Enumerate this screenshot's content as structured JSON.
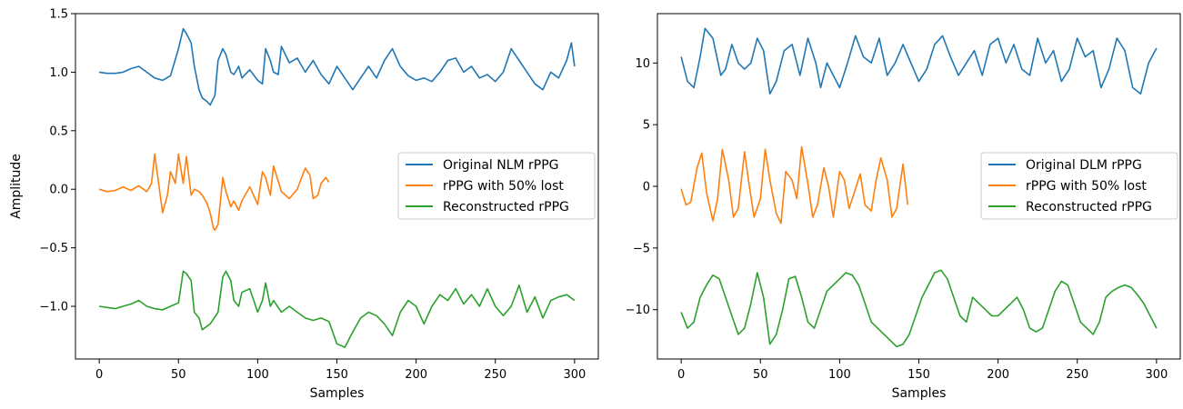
{
  "chart_data": [
    {
      "type": "line",
      "title": "",
      "xlabel": "Samples",
      "ylabel": "Amplitude",
      "xlim": [
        -15,
        315
      ],
      "ylim": [
        -1.45,
        1.5
      ],
      "xticks": [
        0,
        50,
        100,
        150,
        200,
        250,
        300
      ],
      "yticks": [
        -1.0,
        -0.5,
        0.0,
        0.5,
        1.0,
        1.5
      ],
      "ytick_labels": [
        "−1.0",
        "−0.5",
        "0.0",
        "0.5",
        "1.0",
        "1.5"
      ],
      "grid": false,
      "legend_position": "center-right",
      "series": [
        {
          "name": "Original NLM rPPG",
          "color": "#1f77b4",
          "x": [
            0,
            5,
            10,
            15,
            20,
            25,
            30,
            35,
            40,
            45,
            50,
            53,
            55,
            58,
            60,
            63,
            65,
            68,
            70,
            73,
            75,
            78,
            80,
            83,
            85,
            88,
            90,
            95,
            100,
            103,
            105,
            108,
            110,
            113,
            115,
            120,
            125,
            130,
            135,
            140,
            145,
            150,
            155,
            160,
            165,
            170,
            175,
            180,
            185,
            190,
            195,
            200,
            205,
            210,
            215,
            220,
            225,
            230,
            235,
            240,
            245,
            250,
            255,
            260,
            265,
            270,
            275,
            280,
            285,
            290,
            295,
            298,
            300
          ],
          "y": [
            1.0,
            0.99,
            0.99,
            1.0,
            1.03,
            1.05,
            1.0,
            0.95,
            0.93,
            0.97,
            1.2,
            1.37,
            1.33,
            1.25,
            1.05,
            0.85,
            0.78,
            0.75,
            0.72,
            0.8,
            1.1,
            1.2,
            1.15,
            1.0,
            0.98,
            1.05,
            0.95,
            1.02,
            0.93,
            0.9,
            1.2,
            1.1,
            1.0,
            0.98,
            1.22,
            1.08,
            1.12,
            1.0,
            1.1,
            0.98,
            0.9,
            1.05,
            0.95,
            0.85,
            0.95,
            1.05,
            0.95,
            1.1,
            1.2,
            1.05,
            0.97,
            0.93,
            0.95,
            0.92,
            1.0,
            1.1,
            1.12,
            1.0,
            1.05,
            0.95,
            0.98,
            0.92,
            1.0,
            1.2,
            1.1,
            1.0,
            0.9,
            0.85,
            1.0,
            0.95,
            1.1,
            1.25,
            1.05
          ]
        },
        {
          "name": "rPPG with 50% lost",
          "color": "#ff7f0e",
          "x": [
            0,
            5,
            10,
            15,
            20,
            25,
            30,
            33,
            35,
            38,
            40,
            43,
            45,
            48,
            50,
            53,
            55,
            58,
            60,
            63,
            65,
            68,
            70,
            72,
            73,
            75,
            78,
            80,
            83,
            85,
            88,
            90,
            95,
            100,
            103,
            105,
            108,
            110,
            115,
            120,
            125,
            130,
            133,
            135,
            138,
            140,
            143,
            145
          ],
          "y": [
            0.0,
            -0.02,
            -0.01,
            0.02,
            -0.01,
            0.03,
            -0.02,
            0.05,
            0.3,
            0.0,
            -0.2,
            -0.05,
            0.15,
            0.05,
            0.3,
            0.05,
            0.28,
            -0.05,
            0.0,
            -0.02,
            -0.05,
            -0.12,
            -0.2,
            -0.33,
            -0.35,
            -0.3,
            0.1,
            -0.02,
            -0.15,
            -0.1,
            -0.18,
            -0.1,
            0.02,
            -0.13,
            0.15,
            0.1,
            -0.05,
            0.2,
            -0.02,
            -0.08,
            0.0,
            0.18,
            0.12,
            -0.08,
            -0.05,
            0.05,
            0.1,
            0.06
          ]
        },
        {
          "name": "Reconstructed rPPG",
          "color": "#2ca02c",
          "x": [
            0,
            5,
            10,
            15,
            20,
            25,
            30,
            35,
            40,
            45,
            50,
            53,
            55,
            58,
            60,
            63,
            65,
            70,
            75,
            78,
            80,
            83,
            85,
            88,
            90,
            95,
            100,
            103,
            105,
            108,
            110,
            115,
            120,
            125,
            130,
            135,
            140,
            145,
            150,
            155,
            160,
            165,
            170,
            175,
            180,
            185,
            190,
            195,
            200,
            205,
            210,
            215,
            220,
            225,
            230,
            235,
            240,
            245,
            250,
            255,
            260,
            265,
            270,
            275,
            280,
            285,
            290,
            295,
            300
          ],
          "y": [
            -1.0,
            -1.01,
            -1.02,
            -1.0,
            -0.98,
            -0.95,
            -1.0,
            -1.02,
            -1.03,
            -1.0,
            -0.97,
            -0.7,
            -0.72,
            -0.78,
            -1.05,
            -1.1,
            -1.2,
            -1.15,
            -1.05,
            -0.75,
            -0.7,
            -0.78,
            -0.95,
            -1.0,
            -0.88,
            -0.85,
            -1.05,
            -0.95,
            -0.8,
            -1.0,
            -0.95,
            -1.05,
            -1.0,
            -1.05,
            -1.1,
            -1.12,
            -1.1,
            -1.13,
            -1.32,
            -1.35,
            -1.22,
            -1.1,
            -1.05,
            -1.08,
            -1.15,
            -1.25,
            -1.05,
            -0.95,
            -1.0,
            -1.15,
            -1.0,
            -0.9,
            -0.95,
            -0.85,
            -0.98,
            -0.9,
            -1.0,
            -0.85,
            -1.0,
            -1.08,
            -1.0,
            -0.82,
            -1.05,
            -0.92,
            -1.1,
            -0.95,
            -0.92,
            -0.9,
            -0.95
          ]
        }
      ]
    },
    {
      "type": "line",
      "title": "",
      "xlabel": "Samples",
      "ylabel": "",
      "xlim": [
        -15,
        315
      ],
      "ylim": [
        -14,
        14
      ],
      "xticks": [
        0,
        50,
        100,
        150,
        200,
        250,
        300
      ],
      "yticks": [
        -10,
        -5,
        0,
        5,
        10
      ],
      "ytick_labels": [
        "−10",
        "−5",
        "0",
        "5",
        "10"
      ],
      "grid": false,
      "legend_position": "center-right",
      "series": [
        {
          "name": "Original DLM rPPG",
          "color": "#1f77b4",
          "x": [
            0,
            4,
            8,
            12,
            15,
            20,
            25,
            28,
            32,
            36,
            40,
            44,
            48,
            52,
            56,
            60,
            65,
            70,
            75,
            80,
            85,
            88,
            92,
            96,
            100,
            105,
            110,
            115,
            120,
            125,
            130,
            135,
            140,
            145,
            150,
            155,
            160,
            165,
            170,
            175,
            180,
            185,
            190,
            195,
            200,
            205,
            210,
            215,
            220,
            225,
            230,
            235,
            240,
            245,
            250,
            255,
            260,
            265,
            270,
            275,
            280,
            285,
            290,
            295,
            300
          ],
          "y": [
            10.5,
            8.5,
            8.0,
            10.5,
            12.8,
            12.0,
            9.0,
            9.5,
            11.5,
            10.0,
            9.5,
            10.0,
            12.0,
            11.0,
            7.5,
            8.5,
            11.0,
            11.5,
            9.0,
            12.0,
            10.0,
            8.0,
            10.0,
            9.0,
            8.0,
            10.0,
            12.2,
            10.5,
            10.0,
            12.0,
            9.0,
            10.0,
            11.5,
            10.0,
            8.5,
            9.5,
            11.5,
            12.2,
            10.5,
            9.0,
            10.0,
            11.0,
            9.0,
            11.5,
            12.0,
            10.0,
            11.5,
            9.5,
            9.0,
            12.0,
            10.0,
            11.0,
            8.5,
            9.5,
            12.0,
            10.5,
            11.0,
            8.0,
            9.5,
            12.0,
            11.0,
            8.0,
            7.5,
            10.0,
            11.2
          ]
        },
        {
          "name": "rPPG with 50% lost",
          "color": "#ff7f0e",
          "x": [
            0,
            3,
            6,
            10,
            13,
            16,
            20,
            23,
            26,
            30,
            33,
            36,
            40,
            43,
            46,
            50,
            53,
            56,
            60,
            63,
            66,
            70,
            73,
            76,
            80,
            83,
            86,
            90,
            93,
            96,
            100,
            103,
            106,
            110,
            113,
            116,
            120,
            123,
            126,
            130,
            133,
            136,
            140,
            143
          ],
          "y": [
            -0.2,
            -1.5,
            -1.3,
            1.5,
            2.7,
            -0.5,
            -2.8,
            -1.0,
            3.0,
            0.5,
            -2.5,
            -1.8,
            2.8,
            0.0,
            -2.5,
            -1.0,
            3.0,
            0.5,
            -2.2,
            -3.0,
            1.2,
            0.5,
            -1.0,
            3.2,
            0.2,
            -2.5,
            -1.5,
            1.5,
            0.0,
            -2.5,
            1.2,
            0.5,
            -1.8,
            -0.2,
            1.0,
            -1.5,
            -2.0,
            0.5,
            2.3,
            0.5,
            -2.5,
            -1.8,
            1.8,
            -1.5
          ]
        },
        {
          "name": "Reconstructed rPPG",
          "color": "#2ca02c",
          "x": [
            0,
            4,
            8,
            12,
            16,
            20,
            24,
            28,
            32,
            36,
            40,
            44,
            48,
            52,
            56,
            60,
            64,
            68,
            72,
            76,
            80,
            84,
            88,
            92,
            96,
            100,
            104,
            108,
            112,
            116,
            120,
            124,
            128,
            132,
            136,
            140,
            144,
            148,
            152,
            156,
            160,
            164,
            168,
            172,
            176,
            180,
            184,
            188,
            192,
            196,
            200,
            204,
            208,
            212,
            216,
            220,
            224,
            228,
            232,
            236,
            240,
            244,
            248,
            252,
            256,
            260,
            264,
            268,
            272,
            276,
            280,
            284,
            288,
            292,
            296,
            300
          ],
          "y": [
            -10.2,
            -11.5,
            -11.0,
            -9.0,
            -8.0,
            -7.2,
            -7.5,
            -9.0,
            -10.5,
            -12.0,
            -11.5,
            -9.5,
            -7.0,
            -9.0,
            -12.8,
            -12.0,
            -10.0,
            -7.5,
            -7.3,
            -9.0,
            -11.0,
            -11.5,
            -10.0,
            -8.5,
            -8.0,
            -7.5,
            -7.0,
            -7.2,
            -8.0,
            -9.5,
            -11.0,
            -11.5,
            -12.0,
            -12.5,
            -13.0,
            -12.8,
            -12.0,
            -10.5,
            -9.0,
            -8.0,
            -7.0,
            -6.8,
            -7.5,
            -9.0,
            -10.5,
            -11.0,
            -9.0,
            -9.5,
            -10.0,
            -10.5,
            -10.5,
            -10.0,
            -9.5,
            -9.0,
            -10.0,
            -11.5,
            -11.8,
            -11.5,
            -10.0,
            -8.5,
            -7.7,
            -8.0,
            -9.5,
            -11.0,
            -11.5,
            -12.0,
            -11.0,
            -9.0,
            -8.5,
            -8.2,
            -8.0,
            -8.2,
            -8.8,
            -9.5,
            -10.5,
            -11.5
          ]
        }
      ]
    }
  ]
}
